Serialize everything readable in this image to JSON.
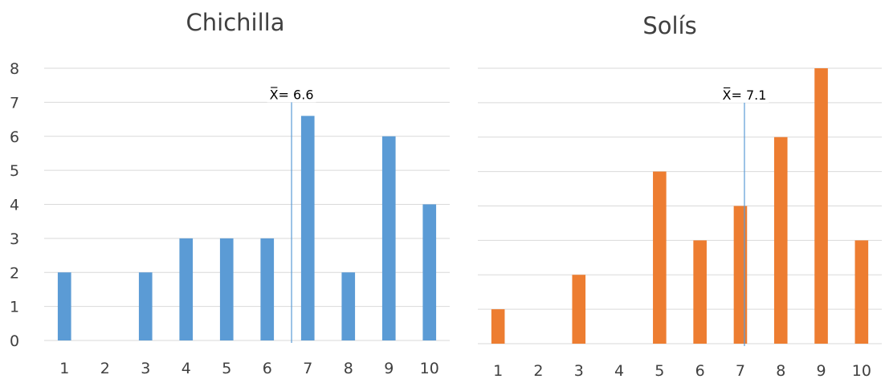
{
  "chart_data": [
    {
      "type": "bar",
      "title": "Chichilla",
      "categories": [
        "1",
        "2",
        "3",
        "4",
        "5",
        "6",
        "7",
        "8",
        "9",
        "10"
      ],
      "values": [
        2,
        0,
        2,
        3,
        3,
        3,
        6.6,
        2,
        6,
        4
      ],
      "ylim": [
        0,
        8
      ],
      "yticks": [
        0,
        1,
        2,
        3,
        4,
        5,
        6,
        7,
        8
      ],
      "show_y_tick_labels": true,
      "grid": true,
      "legend": "none",
      "color": "#5b9bd5",
      "mean": {
        "label": "X̅= 6.6",
        "x": 6.6
      }
    },
    {
      "type": "bar",
      "title": "Solís",
      "categories": [
        "1",
        "2",
        "3",
        "4",
        "5",
        "6",
        "7",
        "8",
        "9",
        "10"
      ],
      "values": [
        1,
        0,
        2,
        0,
        5,
        3,
        4,
        6,
        8,
        3
      ],
      "ylim": [
        0,
        8
      ],
      "yticks": [
        0,
        1,
        2,
        3,
        4,
        5,
        6,
        7,
        8
      ],
      "show_y_tick_labels": false,
      "grid": true,
      "legend": "none",
      "color": "#ed7d31",
      "mean": {
        "label": "X̅= 7.1",
        "x": 7.1
      }
    }
  ]
}
